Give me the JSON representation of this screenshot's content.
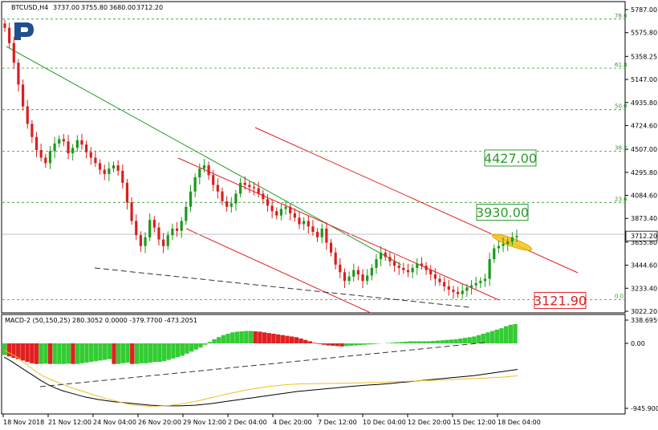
{
  "chart_data": {
    "type": "candlestick",
    "header": {
      "symbol": "BTCUSD,H4",
      "open": "3737.00",
      "high": "3755.80",
      "low": "3680.00",
      "close": "3712.20"
    },
    "price_axis": {
      "ticks": [
        "5787.00",
        "5575.80",
        "5358.25",
        "5147.00",
        "4935.80",
        "4724.60",
        "4507.00",
        "4295.80",
        "4084.60",
        "3873.40",
        "3655.80",
        "3444.60",
        "3233.40",
        "3022.20"
      ],
      "tick_values": [
        5787.0,
        5575.8,
        5358.25,
        5147.0,
        4935.8,
        4724.6,
        4507.0,
        4295.8,
        4084.6,
        3873.4,
        3655.8,
        3444.6,
        3233.4,
        3022.2
      ],
      "current_price": "3712.20",
      "current_value": 3712.2
    },
    "fibonacci_levels": [
      {
        "label": "76.0",
        "value": 5700
      },
      {
        "label": "61.8",
        "value": 5250
      },
      {
        "label": "50.0",
        "value": 4870
      },
      {
        "label": "38.2",
        "value": 4490
      },
      {
        "label": "23.6",
        "value": 4020
      },
      {
        "label": "0.0",
        "value": 3130
      }
    ],
    "annotations": [
      {
        "text": "4427.00",
        "value": 4427.0,
        "color": "#2e9a2e"
      },
      {
        "text": "3930.00",
        "value": 3930.0,
        "color": "#2e9a2e"
      },
      {
        "text": "3121.90",
        "value": 3121.9,
        "color": "#e02020"
      }
    ],
    "x_axis": {
      "labels": [
        "18 Nov 2018",
        "21 Nov 12:00",
        "24 Nov 04:00",
        "26 Nov 20:00",
        "29 Nov 12:00",
        "2 Dec 04:00",
        "4 Dec 20:00",
        "7 Dec 12:00",
        "10 Dec 04:00",
        "12 Dec 20:00",
        "15 Dec 12:00",
        "18 Dec 04:00"
      ]
    },
    "series": [
      {
        "name": "close",
        "values": [
          5620,
          5480,
          5300,
          5100,
          4900,
          4740,
          4620,
          4500,
          4430,
          4380,
          4490,
          4560,
          4600,
          4580,
          4470,
          4520,
          4590,
          4550,
          4480,
          4430,
          4380,
          4320,
          4280,
          4330,
          4360,
          4310,
          4200,
          4020,
          3850,
          3720,
          3620,
          3700,
          3860,
          3790,
          3680,
          3620,
          3720,
          3780,
          3760,
          3850,
          3980,
          4120,
          4250,
          4330,
          4360,
          4270,
          4180,
          4120,
          4030,
          3980,
          4010,
          4100,
          4200,
          4180,
          4160,
          4150,
          4100,
          4050,
          3990,
          3940,
          3900,
          3960,
          3980,
          3920,
          3880,
          3820,
          3850,
          3800,
          3750,
          3700,
          3780,
          3650,
          3560,
          3450,
          3380,
          3300,
          3340,
          3400,
          3360,
          3300,
          3350,
          3420,
          3500,
          3560,
          3520,
          3480,
          3440,
          3420,
          3400,
          3380,
          3420,
          3460,
          3440,
          3400,
          3360,
          3320,
          3290,
          3250,
          3220,
          3200,
          3180,
          3210,
          3240,
          3260,
          3280,
          3300,
          3320,
          3500,
          3600,
          3620,
          3640,
          3660,
          3700,
          3712
        ]
      }
    ],
    "macd": {
      "header": "MACD-2 (50,150,25) 280.3052 0.0000 -379.7700 -473.2051",
      "ticks": [
        "338.6959",
        "0.00",
        "-945.9007"
      ],
      "tick_values": [
        338.6959,
        0,
        -945.9007
      ],
      "histogram": [
        -170,
        -190,
        -210,
        -230,
        -250,
        -270,
        -290,
        -300,
        -300,
        -295,
        -300,
        -300,
        -300,
        -300,
        -295,
        -300,
        -300,
        -290,
        -280,
        -270,
        -260,
        -250,
        -240,
        -230,
        -300,
        -300,
        -290,
        -280,
        -300,
        -300,
        -290,
        -290,
        -280,
        -270,
        -270,
        -260,
        -240,
        -220,
        -200,
        -180,
        -150,
        -120,
        -90,
        -60,
        -20,
        20,
        60,
        90,
        120,
        140,
        160,
        170,
        175,
        180,
        180,
        175,
        170,
        160,
        150,
        140,
        130,
        120,
        110,
        100,
        90,
        70,
        50,
        30,
        10,
        -10,
        -20,
        -30,
        -35,
        -40,
        -45,
        -40,
        -35,
        -30,
        -25,
        -20,
        -15,
        -10,
        -5,
        0,
        5,
        10,
        15,
        20,
        25,
        30,
        30,
        30,
        30,
        30,
        35,
        40,
        45,
        50,
        55,
        60,
        70,
        80,
        90,
        100,
        120,
        140,
        160,
        180,
        200,
        220,
        250,
        270,
        280
      ],
      "signal_line": [
        -100,
        -150,
        -200,
        -280,
        -350,
        -420,
        -480,
        -520,
        -560,
        -600,
        -640,
        -670,
        -700,
        -730,
        -760,
        -790,
        -815,
        -840,
        -865,
        -885,
        -900,
        -910,
        -915,
        -915,
        -910,
        -905,
        -895,
        -880,
        -865,
        -845,
        -825,
        -800,
        -780,
        -755,
        -735,
        -715,
        -695,
        -675,
        -660,
        -645,
        -630,
        -620,
        -610,
        -600,
        -595,
        -590,
        -588,
        -586,
        -585,
        -584,
        -583,
        -582,
        -580,
        -578,
        -575,
        -572,
        -570,
        -567,
        -563,
        -560,
        -557,
        -554,
        -550,
        -546,
        -542,
        -538,
        -534,
        -530,
        -526,
        -522,
        -518,
        -514,
        -510,
        -505,
        -500,
        -495,
        -490,
        -480,
        -473
      ],
      "macd_line": [
        -200,
        -260,
        -330,
        -400,
        -470,
        -540,
        -600,
        -650,
        -690,
        -720,
        -750,
        -780,
        -800,
        -820,
        -835,
        -850,
        -860,
        -870,
        -880,
        -890,
        -900,
        -905,
        -908,
        -910,
        -910,
        -905,
        -900,
        -890,
        -880,
        -865,
        -850,
        -835,
        -820,
        -805,
        -790,
        -775,
        -760,
        -745,
        -730,
        -715,
        -700,
        -690,
        -680,
        -670,
        -660,
        -650,
        -640,
        -630,
        -620,
        -612,
        -605,
        -598,
        -590,
        -580,
        -570,
        -560,
        -550,
        -540,
        -530,
        -520,
        -510,
        -500,
        -490,
        -480,
        -470,
        -455,
        -440,
        -425,
        -410,
        -395,
        -380
      ]
    }
  }
}
